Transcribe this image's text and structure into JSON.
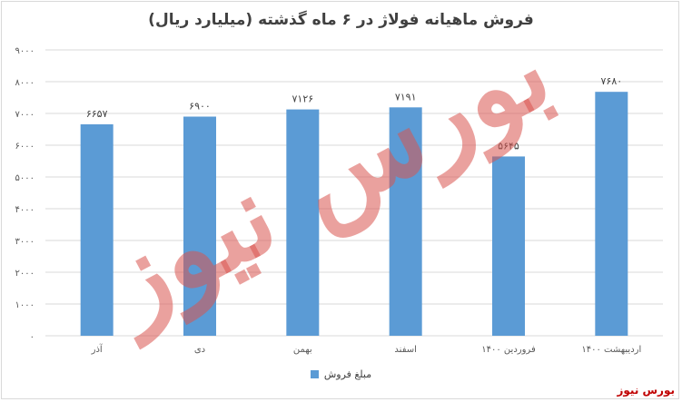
{
  "chart_data": {
    "type": "bar",
    "title": "فروش ماهیانه فولاژ در ۶ ماه گذشته (میلیارد ریال)",
    "categories": [
      "آذر",
      "دی",
      "بهمن",
      "اسفند",
      "فروردین ۱۴۰۰",
      "اردیبهشت ۱۴۰۰"
    ],
    "series": [
      {
        "name": "مبلغ فروش",
        "values": [
          6657,
          6900,
          7126,
          7191,
          5645,
          7680
        ]
      }
    ],
    "data_labels": [
      "۶۶۵۷",
      "۶۹۰۰",
      "۷۱۲۶",
      "۷۱۹۱",
      "۵۶۴۵",
      "۷۶۸۰"
    ],
    "y_ticks": [
      0,
      1000,
      2000,
      3000,
      4000,
      5000,
      6000,
      7000,
      8000,
      9000
    ],
    "y_tick_labels": [
      "۰",
      "۱۰۰۰",
      "۲۰۰۰",
      "۳۰۰۰",
      "۴۰۰۰",
      "۵۰۰۰",
      "۶۰۰۰",
      "۷۰۰۰",
      "۸۰۰۰",
      "۹۰۰۰"
    ],
    "ylim": [
      0,
      9000
    ],
    "grid": true,
    "legend_position": "bottom",
    "xlabel": "",
    "ylabel": ""
  },
  "colors": {
    "bar": "#5b9bd5",
    "grid": "#d9d9d9",
    "text": "#595959",
    "watermark": "#d9534f"
  },
  "watermark_text": "بورس نیوز",
  "source_label": "بورس نیوز"
}
